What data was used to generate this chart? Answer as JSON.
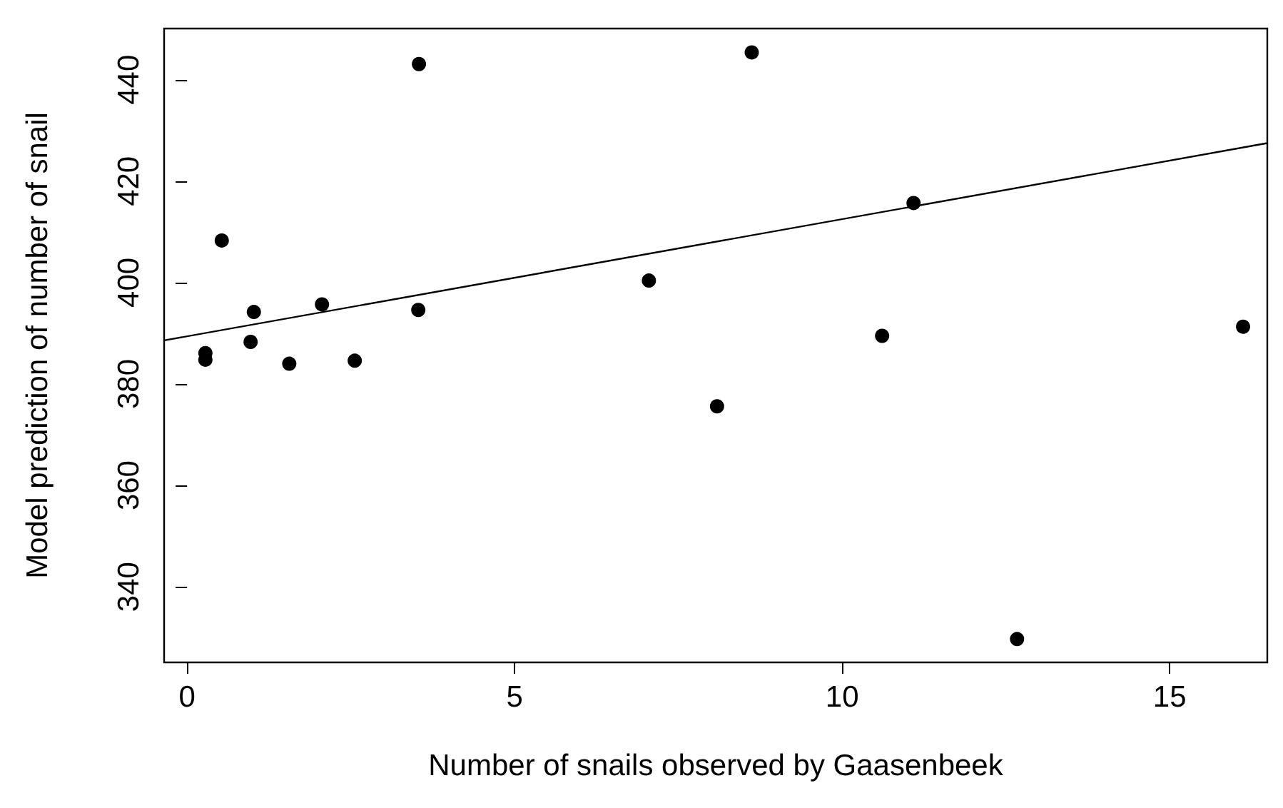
{
  "chart_data": {
    "type": "scatter",
    "xlabel": "Number of snails observed by Gaasenbeek",
    "ylabel": "Model prediction of number of snail",
    "xlim": [
      -0.35,
      16.49
    ],
    "ylim": [
      325.1,
      450.1
    ],
    "xticks": [
      0,
      5,
      10,
      15
    ],
    "yticks": [
      340,
      360,
      380,
      400,
      420,
      440
    ],
    "grid": false,
    "marker": "circle",
    "series": [
      {
        "color": "#000000",
        "x": [
          0.28,
          0.28,
          0.53,
          1.02,
          0.97,
          1.56,
          2.06,
          2.56,
          3.54,
          3.53,
          7.05,
          8.62,
          11.09,
          8.09,
          10.61,
          16.12,
          12.67
        ],
        "values": [
          386.1,
          384.8,
          408.3,
          394.2,
          388.3,
          384.0,
          395.7,
          384.6,
          443.1,
          394.6,
          400.4,
          445.4,
          415.7,
          375.6,
          389.5,
          391.3,
          329.7
        ]
      },
      {
        "type": "line",
        "color": "#000000",
        "line_style": "solid",
        "marker": "none",
        "x": [
          -0.35,
          16.49
        ],
        "values": [
          388.6,
          427.5
        ]
      }
    ]
  }
}
